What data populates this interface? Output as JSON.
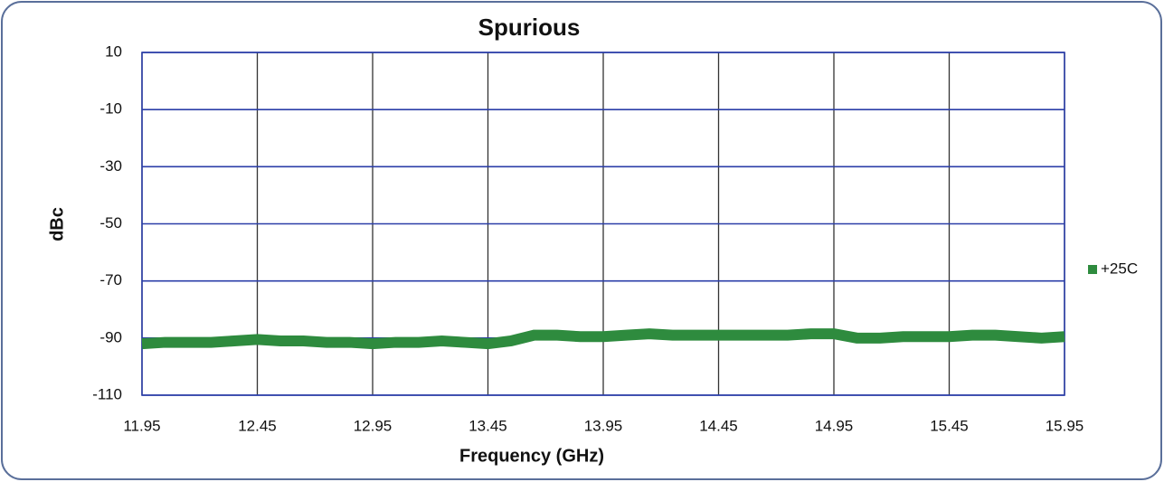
{
  "chart_data": {
    "type": "line",
    "title": "Spurious",
    "x_label": "Frequency (GHz)",
    "y_label": "dBc",
    "x": [
      11.95,
      12.05,
      12.15,
      12.25,
      12.35,
      12.45,
      12.55,
      12.65,
      12.75,
      12.85,
      12.95,
      13.05,
      13.15,
      13.25,
      13.35,
      13.45,
      13.55,
      13.65,
      13.75,
      13.85,
      13.95,
      14.05,
      14.15,
      14.25,
      14.35,
      14.45,
      14.55,
      14.65,
      14.75,
      14.85,
      14.95,
      15.05,
      15.15,
      15.25,
      15.35,
      15.45,
      15.55,
      15.65,
      15.75,
      15.85,
      15.95
    ],
    "series": [
      {
        "name": "+25C",
        "color": "#2e8b3e",
        "values": [
          -92,
          -91.5,
          -91.5,
          -91.5,
          -91,
          -90.5,
          -91,
          -91,
          -91.5,
          -91.5,
          -92,
          -91.5,
          -91.5,
          -91,
          -91.5,
          -92,
          -91,
          -89,
          -89,
          -89.5,
          -89.5,
          -89,
          -88.5,
          -89,
          -89,
          -89,
          -89,
          -89,
          -89,
          -88.5,
          -88.5,
          -90,
          -90,
          -89.5,
          -89.5,
          -89.5,
          -89,
          -89,
          -89.5,
          -90,
          -89.5
        ]
      }
    ],
    "xlim": [
      11.95,
      15.95
    ],
    "xticks": [
      11.95,
      12.45,
      12.95,
      13.45,
      13.95,
      14.45,
      14.95,
      15.45,
      15.95
    ],
    "ylim": [
      -110,
      10
    ],
    "yticks": [
      10,
      -10,
      -30,
      -50,
      -70,
      -90,
      -110
    ],
    "grid": true,
    "legend": "right"
  }
}
